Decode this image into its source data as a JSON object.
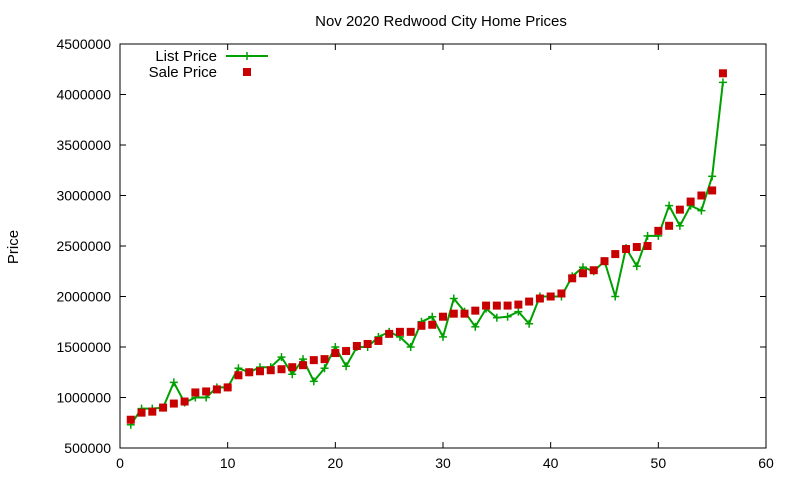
{
  "chart_data": {
    "type": "line",
    "title": "Nov 2020 Redwood City Home Prices",
    "xlabel": "",
    "ylabel": "Price",
    "xlim": [
      0,
      60
    ],
    "ylim": [
      500000,
      4500000
    ],
    "x_ticks": [
      0,
      10,
      20,
      30,
      40,
      50,
      60
    ],
    "y_ticks": [
      500000,
      1000000,
      1500000,
      2000000,
      2500000,
      3000000,
      3500000,
      4000000,
      4500000
    ],
    "grid": false,
    "legend_position": "top-left",
    "series": [
      {
        "name": "List Price",
        "style": "line-with-plus-markers",
        "color": "#00a000",
        "x": [
          1,
          2,
          3,
          4,
          5,
          6,
          7,
          8,
          9,
          10,
          11,
          12,
          13,
          14,
          15,
          16,
          17,
          18,
          19,
          20,
          21,
          22,
          23,
          24,
          25,
          26,
          27,
          28,
          29,
          30,
          31,
          32,
          33,
          34,
          35,
          36,
          37,
          38,
          39,
          40,
          41,
          42,
          43,
          44,
          45,
          46,
          47,
          48,
          49,
          50,
          51,
          52,
          53,
          54,
          55,
          56
        ],
        "values": [
          730000,
          890000,
          890000,
          900000,
          1150000,
          950000,
          1000000,
          1000000,
          1100000,
          1100000,
          1290000,
          1250000,
          1300000,
          1300000,
          1400000,
          1230000,
          1380000,
          1160000,
          1290000,
          1500000,
          1310000,
          1500000,
          1500000,
          1600000,
          1650000,
          1600000,
          1500000,
          1750000,
          1800000,
          1600000,
          1980000,
          1850000,
          1700000,
          1880000,
          1790000,
          1800000,
          1850000,
          1730000,
          2000000,
          2000000,
          2000000,
          2200000,
          2290000,
          2250000,
          2350000,
          2000000,
          2480000,
          2300000,
          2600000,
          2600000,
          2900000,
          2700000,
          2900000,
          2850000,
          3190000,
          4120000
        ]
      },
      {
        "name": "Sale Price",
        "style": "square-markers",
        "color": "#c80000",
        "x": [
          1,
          2,
          3,
          4,
          5,
          6,
          7,
          8,
          9,
          10,
          11,
          12,
          13,
          14,
          15,
          16,
          17,
          18,
          19,
          20,
          21,
          22,
          23,
          24,
          25,
          26,
          27,
          28,
          29,
          30,
          31,
          32,
          33,
          34,
          35,
          36,
          37,
          38,
          39,
          40,
          41,
          42,
          43,
          44,
          45,
          46,
          47,
          48,
          49,
          50,
          51,
          52,
          53,
          54,
          55,
          56
        ],
        "values": [
          780000,
          850000,
          860000,
          900000,
          940000,
          960000,
          1050000,
          1060000,
          1080000,
          1100000,
          1220000,
          1250000,
          1260000,
          1270000,
          1280000,
          1300000,
          1320000,
          1370000,
          1380000,
          1440000,
          1460000,
          1510000,
          1530000,
          1560000,
          1630000,
          1650000,
          1650000,
          1710000,
          1720000,
          1800000,
          1830000,
          1830000,
          1860000,
          1910000,
          1910000,
          1910000,
          1920000,
          1950000,
          1980000,
          2000000,
          2030000,
          2180000,
          2230000,
          2260000,
          2350000,
          2420000,
          2470000,
          2490000,
          2500000,
          2650000,
          2700000,
          2860000,
          2940000,
          3000000,
          3050000,
          4210000
        ]
      }
    ]
  }
}
